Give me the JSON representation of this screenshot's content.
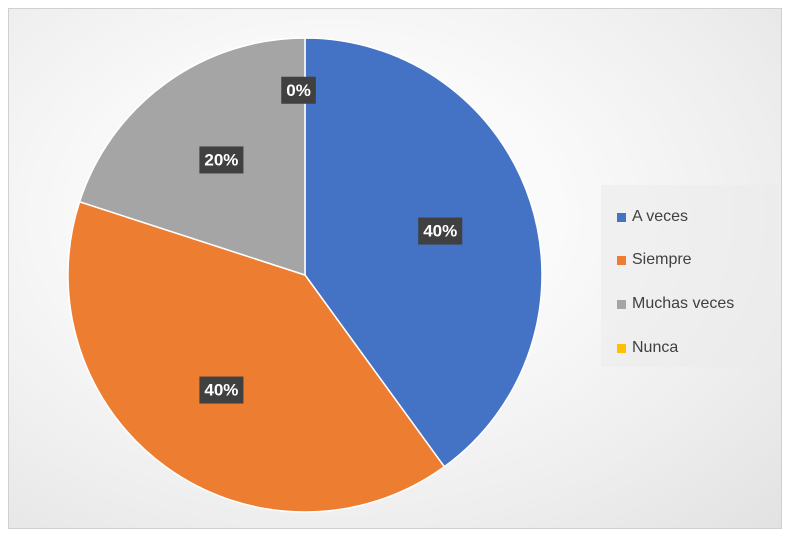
{
  "chart_data": {
    "type": "pie",
    "categories": [
      "A veces",
      "Siempre",
      "Muchas veces",
      "Nunca"
    ],
    "values": [
      40,
      40,
      20,
      0
    ],
    "labels": [
      "40%",
      "40%",
      "20%",
      "0%"
    ],
    "colors": [
      "#4472C4",
      "#ED7D31",
      "#A5A5A5",
      "#FFC000"
    ],
    "start_angle_deg": 0,
    "direction": "clockwise",
    "legend_position": "right",
    "title": ""
  }
}
